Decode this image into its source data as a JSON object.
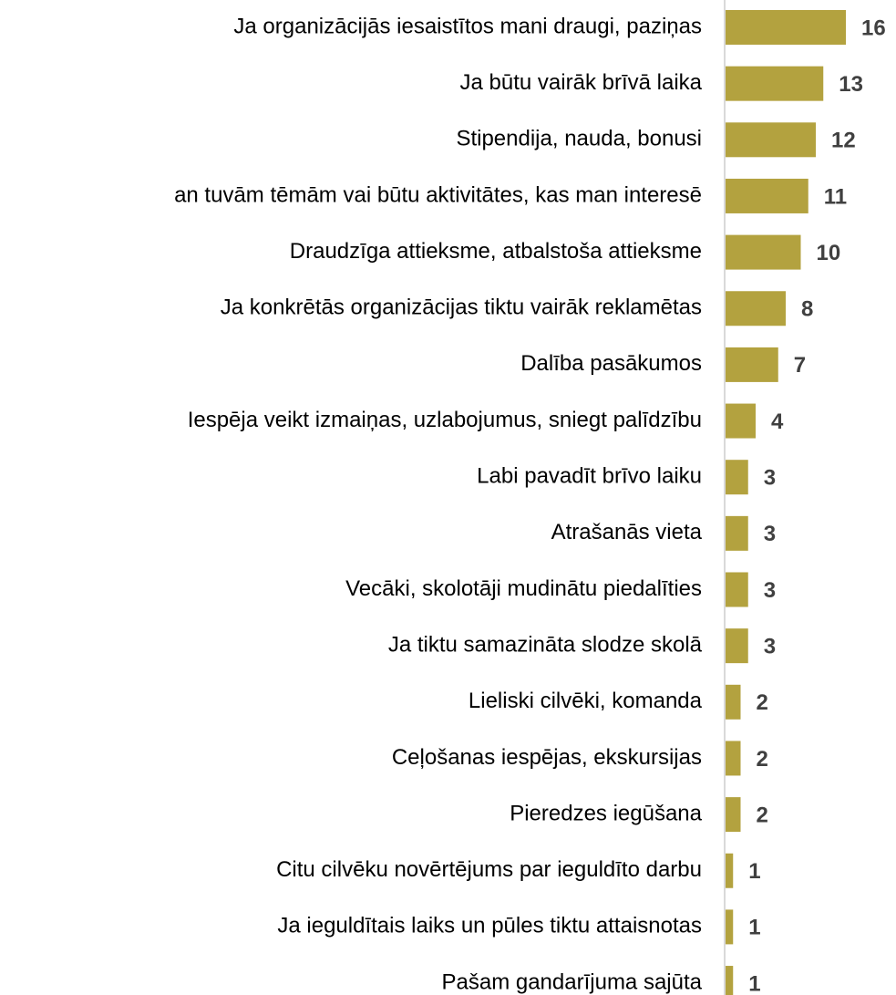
{
  "chart_data": {
    "type": "barh",
    "categories": [
      "Ja organizācijās iesaistītos mani draugi, paziņas",
      "Ja būtu vairāk brīvā laika",
      "Stipendija, nauda, bonusi",
      "an tuvām tēmām vai būtu aktivitātes, kas man interesē",
      "Draudzīga attieksme, atbalstoša attieksme",
      "Ja konkrētās organizācijas tiktu vairāk reklamētas",
      "Dalība pasākumos",
      "Iespēja veikt izmaiņas, uzlabojumus, sniegt palīdzību",
      "Labi pavadīt brīvo laiku",
      "Atrašanās vieta",
      "Vecāki, skolotāji mudinātu piedalīties",
      "Ja tiktu samazināta slodze skolā",
      "Lieliski cilvēki, komanda",
      "Ceļošanas iespējas, ekskursijas",
      "Pieredzes iegūšana",
      "Citu cilvēku novērtējums par ieguldīto darbu",
      "Ja ieguldītais laiks un pūles tiktu attaisnotas",
      "Pašam gandarījuma sajūta"
    ],
    "values": [
      16,
      13,
      12,
      11,
      10,
      8,
      7,
      4,
      3,
      3,
      3,
      3,
      2,
      2,
      2,
      1,
      1,
      1
    ],
    "color": "#b3a23f",
    "xlim": [
      0,
      16
    ]
  }
}
